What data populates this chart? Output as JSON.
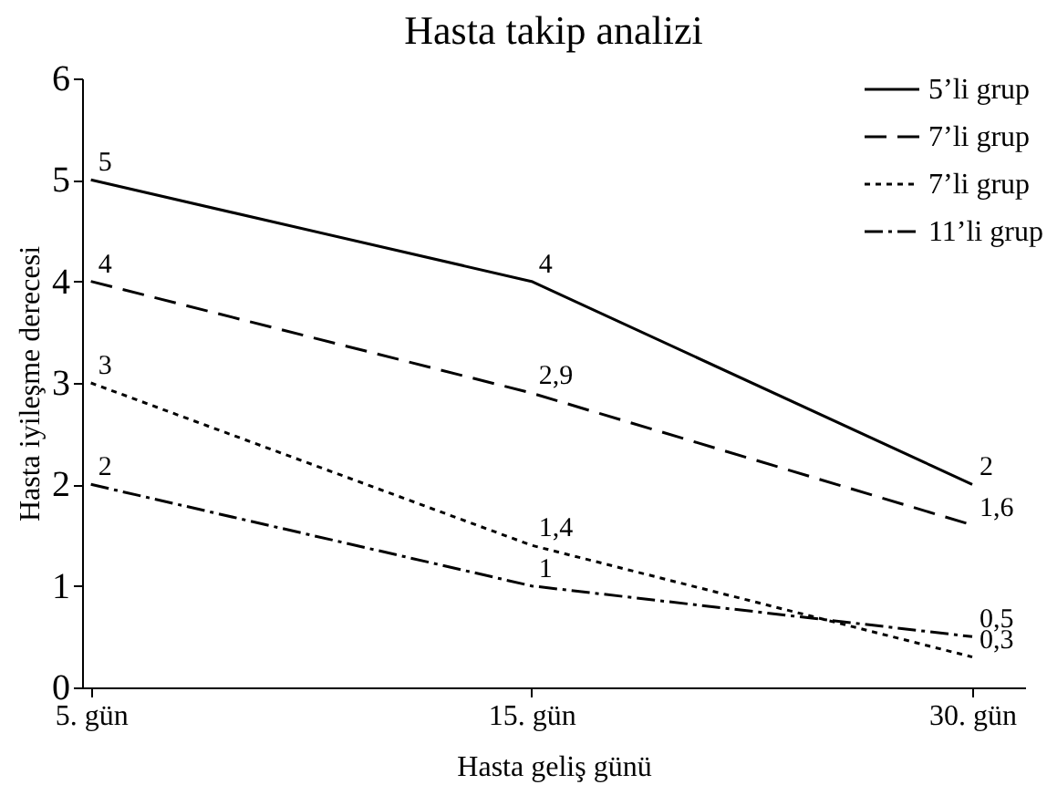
{
  "chart_data": {
    "type": "line",
    "title": "Hasta takip analizi",
    "xlabel": "Hasta geliş günü",
    "ylabel": "Hasta iyileşme derecesi",
    "categories": [
      "5. gün",
      "15. gün",
      "30. gün"
    ],
    "series": [
      {
        "name": "5’li grup",
        "color": "#000000",
        "line_style": "solid",
        "values": [
          5,
          4,
          2
        ],
        "value_labels": [
          "5",
          "4",
          "2"
        ]
      },
      {
        "name": "7’li grup",
        "color": "#000000",
        "line_style": "dashed",
        "values": [
          4,
          2.9,
          1.6
        ],
        "value_labels": [
          "4",
          "2,9",
          "1,6"
        ]
      },
      {
        "name": "7’li grup",
        "color": "#000000",
        "line_style": "dotted",
        "values": [
          3,
          1.4,
          0.3
        ],
        "value_labels": [
          "3",
          "1,4",
          "0,3"
        ]
      },
      {
        "name": "11’li grup",
        "color": "#000000",
        "line_style": "dashdot",
        "values": [
          2,
          1,
          0.5
        ],
        "value_labels": [
          "2",
          "1",
          "0,5"
        ]
      }
    ],
    "ylim": [
      0,
      6
    ],
    "yticks": [
      0,
      1,
      2,
      3,
      4,
      5,
      6
    ],
    "grid": false,
    "legend": "top right",
    "marker": "none"
  }
}
